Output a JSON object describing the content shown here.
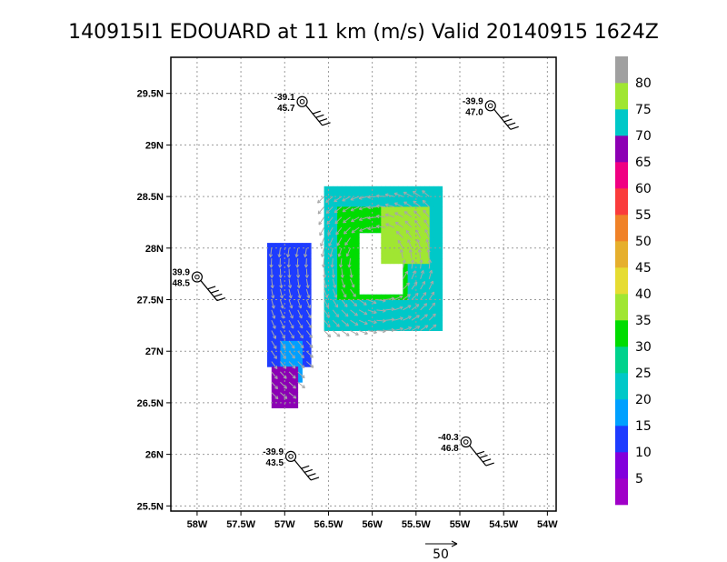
{
  "title": "140915I1 EDOUARD at 11 km (m/s) Valid 20140915 1624Z",
  "chart_data": {
    "type": "heatmap",
    "variable": "wind speed (m/s)",
    "xlim": [
      -58.3,
      -53.9
    ],
    "ylim": [
      25.45,
      29.85
    ],
    "x_ticks": [
      {
        "value": -58.0,
        "label": "58W"
      },
      {
        "value": -57.5,
        "label": "57.5W"
      },
      {
        "value": -57.0,
        "label": "57W"
      },
      {
        "value": -56.5,
        "label": "56.5W"
      },
      {
        "value": -56.0,
        "label": "56W"
      },
      {
        "value": -55.5,
        "label": "55.5W"
      },
      {
        "value": -55.0,
        "label": "55W"
      },
      {
        "value": -54.5,
        "label": "54.5W"
      },
      {
        "value": -54.0,
        "label": "54W"
      }
    ],
    "y_ticks": [
      {
        "value": 25.5,
        "label": "25.5N"
      },
      {
        "value": 26.0,
        "label": "26N"
      },
      {
        "value": 26.5,
        "label": "26.5N"
      },
      {
        "value": 27.0,
        "label": "27N"
      },
      {
        "value": 27.5,
        "label": "27.5N"
      },
      {
        "value": 28.0,
        "label": "28N"
      },
      {
        "value": 28.5,
        "label": "28.5N"
      },
      {
        "value": 29.0,
        "label": "29N"
      },
      {
        "value": 29.5,
        "label": "29.5N"
      }
    ],
    "grid": true,
    "colorbar": {
      "labels": [
        "5",
        "10",
        "15",
        "20",
        "25",
        "30",
        "35",
        "40",
        "45",
        "50",
        "55",
        "60",
        "65",
        "70",
        "75",
        "80"
      ],
      "colors": [
        "#a000c8",
        "#8200dc",
        "#1e3cff",
        "#00a0ff",
        "#00c8c8",
        "#00d28c",
        "#00dc00",
        "#a0e632",
        "#e6dc32",
        "#e6af2d",
        "#f08228",
        "#fa3c3c",
        "#f00082",
        "#8c00b4",
        "#00c8c8",
        "#a0e632",
        "#a0a0a0"
      ],
      "segment_ranges": [
        [
          0,
          5
        ],
        [
          5,
          10
        ],
        [
          10,
          15
        ],
        [
          15,
          20
        ],
        [
          20,
          25
        ],
        [
          25,
          30
        ],
        [
          30,
          35
        ],
        [
          35,
          40
        ],
        [
          40,
          45
        ],
        [
          45,
          50
        ],
        [
          50,
          55
        ],
        [
          55,
          60
        ],
        [
          60,
          65
        ],
        [
          65,
          70
        ],
        [
          70,
          75
        ],
        [
          75,
          80
        ],
        [
          80,
          85
        ]
      ]
    },
    "stations": [
      {
        "lon": -56.8,
        "lat": 29.42,
        "temp": "-39.1",
        "dew": "45.7",
        "label_side": "left"
      },
      {
        "lon": -54.65,
        "lat": 29.38,
        "temp": "-39.9",
        "dew": "47.0",
        "label_side": "left"
      },
      {
        "lon": -58.0,
        "lat": 27.72,
        "temp": "39.9",
        "dew": "48.5",
        "label_side": "left"
      },
      {
        "lon": -56.93,
        "lat": 25.98,
        "temp": "-39.9",
        "dew": "43.5",
        "label_side": "left"
      },
      {
        "lon": -54.93,
        "lat": 26.12,
        "temp": "-40.3",
        "dew": "46.8",
        "label_side": "left"
      }
    ],
    "reference_vector": {
      "value": "50"
    },
    "speed_regions": [
      {
        "range": "10-15",
        "approx_speed": 12,
        "lon": [
          -57.2,
          -56.7
        ],
        "lat": [
          26.85,
          28.05
        ]
      },
      {
        "range": "15-20",
        "approx_speed": 17,
        "lon": [
          -57.05,
          -56.8
        ],
        "lat": [
          26.7,
          27.1
        ]
      },
      {
        "range": "20-25",
        "approx_speed": 22,
        "lon": [
          -56.55,
          -55.2
        ],
        "lat": [
          27.2,
          28.6
        ]
      },
      {
        "range": "30-35",
        "approx_speed": 32,
        "lon": [
          -56.4,
          -55.6
        ],
        "lat": [
          27.5,
          28.4
        ]
      },
      {
        "range": "35-40",
        "approx_speed": 37,
        "lon": [
          -55.9,
          -55.35
        ],
        "lat": [
          27.85,
          28.4
        ]
      },
      {
        "range": "65-70",
        "approx_speed": 67,
        "lon": [
          -57.15,
          -56.85
        ],
        "lat": [
          26.45,
          26.85
        ]
      }
    ]
  }
}
